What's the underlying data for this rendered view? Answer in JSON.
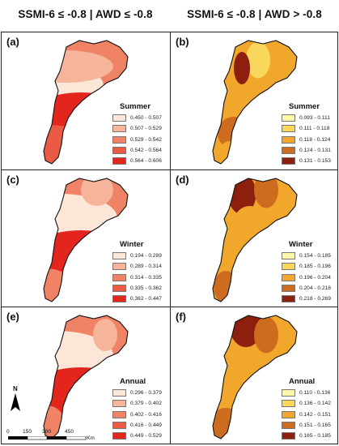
{
  "headers": {
    "left": "SSMI-6 ≤ -0.8 | AWD ≤ -0.8",
    "right": "SSMI-6 ≤ -0.8 | AWD > -0.8"
  },
  "panels": [
    {
      "letter": "(a)",
      "season": "Summer",
      "palette": "red",
      "legend": [
        "0.450 - 0.507",
        "0.507 - 0.529",
        "0.529 - 0.542",
        "0.542 - 0.564",
        "0.564 - 0.606"
      ]
    },
    {
      "letter": "(b)",
      "season": "Summer",
      "palette": "yor",
      "legend": [
        "0.093 - 0.111",
        "0.111 - 0.118",
        "0.118 - 0.124",
        "0.124 - 0.131",
        "0.131 - 0.153"
      ]
    },
    {
      "letter": "(c)",
      "season": "Winter",
      "palette": "red",
      "legend": [
        "0.194 - 0.289",
        "0.289 - 0.314",
        "0.314 - 0.335",
        "0.335 - 0.362",
        "0.362 - 0.447"
      ]
    },
    {
      "letter": "(d)",
      "season": "Winter",
      "palette": "yor",
      "legend": [
        "0.154 - 0.185",
        "0.185 - 0.196",
        "0.196 - 0.204",
        "0.204 - 0.218",
        "0.218 - 0.269"
      ]
    },
    {
      "letter": "(e)",
      "season": "Annual",
      "palette": "red",
      "legend": [
        "0.296 - 0.379",
        "0.379 - 0.402",
        "0.402 - 0.416",
        "0.416 - 0.449",
        "0.449 - 0.529"
      ]
    },
    {
      "letter": "(f)",
      "season": "Annual",
      "palette": "yor",
      "legend": [
        "0.110 - 0.136",
        "0.136 - 0.142",
        "0.142 - 0.151",
        "0.151 - 0.165",
        "0.165 - 0.185"
      ]
    }
  ],
  "palettes": {
    "red": [
      "#fbe6d8",
      "#f6b49a",
      "#f08266",
      "#ea5a45",
      "#e3251d"
    ],
    "yor": [
      "#fdf7a8",
      "#f9d75c",
      "#f1a72c",
      "#cd6c1f",
      "#8c1f0d"
    ]
  },
  "scale": {
    "north": "N",
    "ticks": [
      "0",
      "150",
      "300",
      "450"
    ],
    "unit": "Km"
  }
}
